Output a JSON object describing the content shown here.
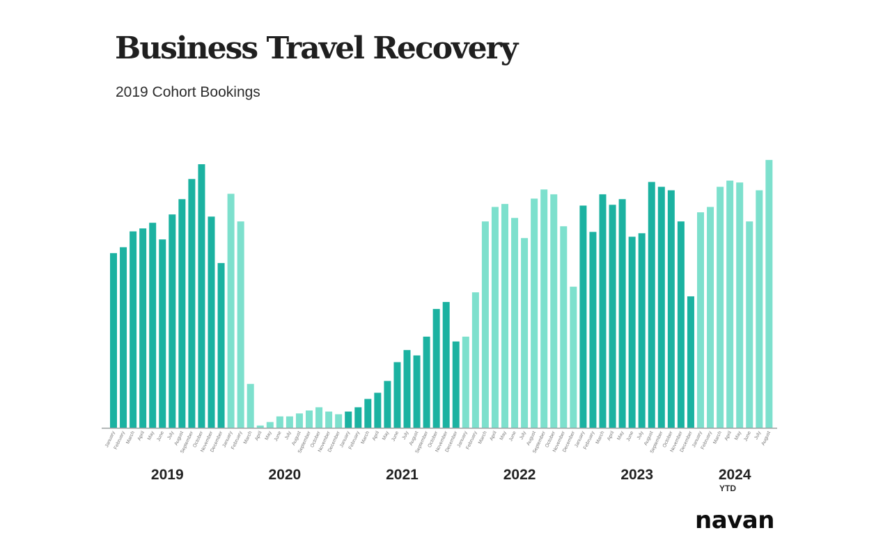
{
  "title": "Business Travel Recovery",
  "subtitle": "2019 Cohort Bookings",
  "ytd_label": "YTD",
  "logo_text": "navan",
  "colors": {
    "dark": "#1bb2a1",
    "light": "#7de0cd",
    "axis": "#9aa0a0",
    "month_text": "#7a7a7a",
    "year_text": "#222222"
  },
  "chart_data": {
    "type": "bar",
    "title": "Business Travel Recovery",
    "subtitle": "2019 Cohort Bookings",
    "xlabel": "",
    "ylabel": "",
    "ylim": [
      0,
      100
    ],
    "grid": false,
    "legend": "none",
    "groups": [
      {
        "year": "2019",
        "shade": "dark",
        "months": [
          "January",
          "February",
          "March",
          "April",
          "May",
          "June",
          "July",
          "August",
          "September",
          "October",
          "November",
          "December"
        ],
        "values": [
          65.2,
          67.4,
          73.3,
          74.4,
          76.5,
          70.3,
          79.6,
          85.3,
          92.8,
          98.3,
          78.8,
          61.5
        ]
      },
      {
        "year": "2020",
        "shade": "light",
        "months": [
          "January",
          "February",
          "March",
          "April",
          "May",
          "June",
          "July",
          "August",
          "September",
          "October",
          "November",
          "December"
        ],
        "values": [
          87.3,
          77.0,
          16.5,
          1.0,
          2.3,
          4.4,
          4.4,
          5.5,
          6.6,
          7.8,
          6.2,
          5.2
        ]
      },
      {
        "year": "2021",
        "shade": "dark",
        "months": [
          "January",
          "February",
          "March",
          "April",
          "May",
          "June",
          "July",
          "August",
          "September",
          "October",
          "November",
          "December"
        ],
        "values": [
          6.2,
          7.8,
          10.9,
          13.2,
          17.6,
          24.6,
          29.1,
          27.1,
          34.1,
          44.4,
          47.0,
          32.3
        ]
      },
      {
        "year": "2022",
        "shade": "light",
        "months": [
          "January",
          "February",
          "March",
          "April",
          "May",
          "June",
          "July",
          "August",
          "September",
          "October",
          "November",
          "December"
        ],
        "values": [
          34.1,
          50.6,
          77.0,
          82.4,
          83.5,
          78.3,
          70.8,
          85.5,
          88.9,
          87.1,
          75.2,
          52.7
        ]
      },
      {
        "year": "2023",
        "shade": "dark",
        "months": [
          "January",
          "February",
          "March",
          "April",
          "May",
          "June",
          "July",
          "August",
          "September",
          "October",
          "November",
          "December"
        ],
        "values": [
          82.9,
          73.1,
          87.1,
          83.2,
          85.3,
          71.3,
          72.6,
          91.7,
          89.9,
          88.6,
          77.0,
          49.1
        ]
      },
      {
        "year": "2024",
        "shade": "light",
        "months": [
          "January",
          "February",
          "March",
          "April",
          "May",
          "June",
          "July",
          "August"
        ],
        "values": [
          80.4,
          82.4,
          89.9,
          92.2,
          91.5,
          77.0,
          88.6,
          99.9
        ]
      }
    ]
  }
}
